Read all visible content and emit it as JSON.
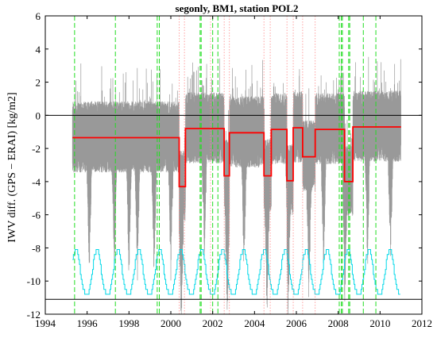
{
  "chart_data": {
    "type": "line",
    "title": "segonly, BM1, station POL2",
    "xlabel": "",
    "ylabel": "IWV diff. (GPS − ERAI) [kg/m2]",
    "xlim": [
      1994,
      2012
    ],
    "ylim": [
      -12,
      6
    ],
    "x_ticks": [
      1994,
      1996,
      1998,
      2000,
      2002,
      2004,
      2006,
      2008,
      2010,
      2012
    ],
    "y_ticks": [
      -12,
      -10,
      -8,
      -6,
      -4,
      -2,
      0,
      2,
      4,
      6
    ],
    "grid": false,
    "horizontal_lines": [
      0,
      -11.1
    ],
    "green_dashed_lines_x": [
      1995.4,
      1997.35,
      1999.35,
      1999.45,
      2001.4,
      2001.45,
      2002.0,
      2002.25,
      2008.05,
      2008.15,
      2008.2,
      2008.5,
      2008.55,
      2009.2,
      2009.8
    ],
    "red_dotted_lines_x": [
      2000.4,
      2000.65,
      2001.9,
      2002.55,
      2002.8,
      2004.45,
      2004.75,
      2005.55,
      2005.85,
      2006.3,
      2006.9
    ],
    "series": [
      {
        "color": "#ff0000",
        "style": "step",
        "x": [
          1995.3,
          2000.4,
          2000.4,
          2000.7,
          2000.7,
          2002.55,
          2002.55,
          2002.8,
          2002.8,
          2004.45,
          2004.45,
          2004.8,
          2004.8,
          2005.55,
          2005.55,
          2005.85,
          2005.85,
          2006.3,
          2006.3,
          2006.9,
          2006.9,
          2008.3,
          2008.3,
          2008.7,
          2008.7,
          2011.0
        ],
        "y": [
          -1.35,
          -1.35,
          -4.3,
          -4.3,
          -0.8,
          -0.8,
          -3.65,
          -3.65,
          -1.05,
          -1.05,
          -3.65,
          -3.65,
          -0.85,
          -0.85,
          -3.95,
          -3.95,
          -0.75,
          -0.75,
          -2.5,
          -2.5,
          -0.85,
          -0.85,
          -4.0,
          -4.0,
          -0.7,
          -0.7
        ]
      },
      {
        "color": "#999999",
        "style": "noisy-daily-difference",
        "x_range": [
          1995.3,
          2011.0
        ],
        "baseline_segments": [
          {
            "x0": 1995.3,
            "x1": 2000.4,
            "y": -1.35
          },
          {
            "x0": 2000.4,
            "x1": 2000.7,
            "y": -4.3
          },
          {
            "x0": 2000.7,
            "x1": 2002.55,
            "y": -0.8
          },
          {
            "x0": 2002.55,
            "x1": 2002.8,
            "y": -3.65
          },
          {
            "x0": 2002.8,
            "x1": 2004.45,
            "y": -1.05
          },
          {
            "x0": 2004.45,
            "x1": 2004.8,
            "y": -3.65
          },
          {
            "x0": 2004.8,
            "x1": 2005.55,
            "y": -0.85
          },
          {
            "x0": 2005.55,
            "x1": 2005.85,
            "y": -3.95
          },
          {
            "x0": 2005.85,
            "x1": 2006.3,
            "y": -0.75
          },
          {
            "x0": 2006.3,
            "x1": 2006.9,
            "y": -2.5
          },
          {
            "x0": 2006.9,
            "x1": 2008.3,
            "y": -0.85
          },
          {
            "x0": 2008.3,
            "x1": 2008.7,
            "y": -4.0
          },
          {
            "x0": 2008.7,
            "x1": 2011.0,
            "y": -0.7
          }
        ],
        "dips_x": [
          1996.1,
          1997.3,
          1998.0,
          1998.4,
          1999.2,
          2000.0,
          2000.5,
          2001.6,
          2002.7,
          2003.5,
          2004.6,
          2005.6,
          2006.6,
          2007.3,
          2008.3,
          2009.4,
          2010.5
        ]
      },
      {
        "color": "#00d8e8",
        "style": "step",
        "x_range": [
          1995.3,
          2011.0
        ],
        "period_years": 1.0,
        "low": -10.8,
        "high": -8.1
      }
    ]
  }
}
